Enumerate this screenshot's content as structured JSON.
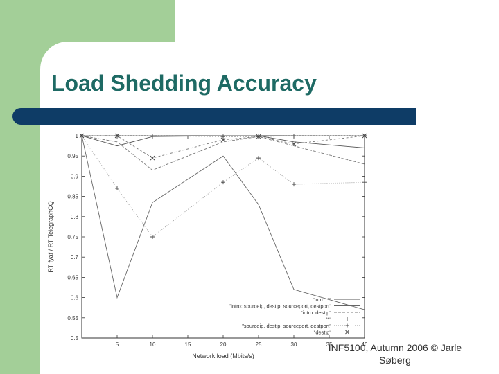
{
  "slide": {
    "title": "Load Shedding Accuracy",
    "footer": "INF5100, Autumn 2006 © Jarle Søberg",
    "colors": {
      "background_green": "#a3cf98",
      "title_color": "#1e6a64",
      "title_bar": "#0e3c66"
    }
  },
  "chart_data": {
    "type": "line",
    "xlabel": "Network load (Mbits/s)",
    "ylabel": "RT fyaf / RT TelegraphCQ",
    "xlim": [
      0,
      40
    ],
    "ylim": [
      0.5,
      1.0
    ],
    "x_ticks": [
      5,
      10,
      15,
      20,
      25,
      30,
      35,
      40
    ],
    "y_ticks": [
      0.5,
      0.55,
      0.6,
      0.65,
      0.7,
      0.75,
      0.8,
      0.85,
      0.9,
      0.95,
      1.0
    ],
    "legend_position": "bottom-right",
    "grid": false,
    "x": [
      0,
      5,
      10,
      20,
      25,
      30,
      40
    ],
    "series": [
      {
        "name": "\"intro: *\"",
        "marker": "none",
        "values": [
          1.0,
          0.975,
          0.998,
          1.0,
          1.0,
          0.985,
          0.97
        ]
      },
      {
        "name": "\"intro: sourceip, destip, sourceport, destport\"",
        "marker": "none",
        "values": [
          1.0,
          0.6,
          0.835,
          0.95,
          0.83,
          0.62,
          0.57
        ]
      },
      {
        "name": "\"intro: destip\"",
        "marker": "none",
        "values": [
          1.0,
          0.985,
          0.915,
          0.985,
          0.998,
          0.975,
          0.93
        ]
      },
      {
        "name": "\"*\"",
        "marker": "plus",
        "values": [
          1.0,
          1.0,
          1.0,
          0.998,
          0.998,
          1.0,
          1.0
        ]
      },
      {
        "name": "\"sourceip, destip, sourceport, destport\"",
        "marker": "plus",
        "values": [
          1.0,
          0.87,
          0.75,
          0.885,
          0.945,
          0.88,
          0.885
        ]
      },
      {
        "name": "\"destip\"",
        "marker": "x",
        "values": [
          1.0,
          1.0,
          0.945,
          0.99,
          0.998,
          0.98,
          1.0
        ]
      }
    ]
  }
}
